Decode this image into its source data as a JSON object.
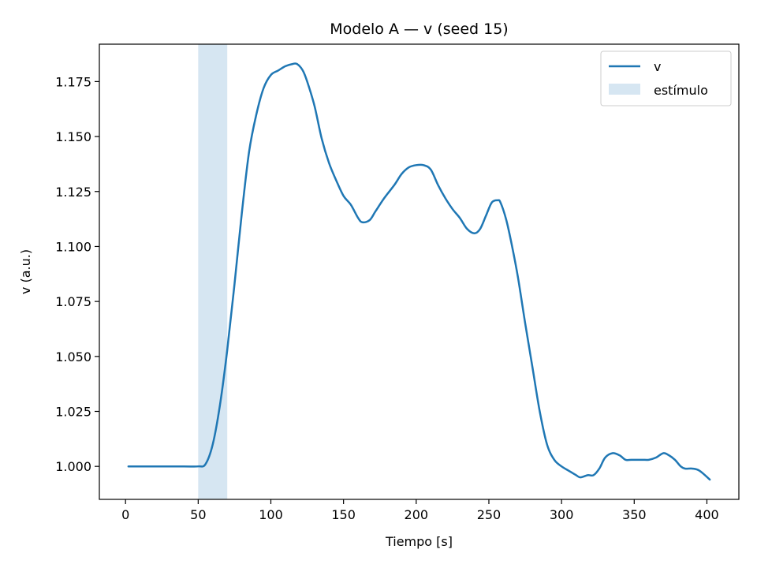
{
  "chart_data": {
    "type": "line",
    "title": "Modelo A — v (seed 15)",
    "xlabel": "Tiempo [s]",
    "ylabel": "v (a.u.)",
    "xlim": [
      -18,
      422
    ],
    "ylim": [
      0.985,
      1.192
    ],
    "xticks": [
      0,
      50,
      100,
      150,
      200,
      250,
      300,
      350,
      400
    ],
    "yticks": [
      1.0,
      1.025,
      1.05,
      1.075,
      1.1,
      1.125,
      1.15,
      1.175
    ],
    "ytick_labels": [
      "1.000",
      "1.025",
      "1.050",
      "1.075",
      "1.100",
      "1.125",
      "1.150",
      "1.175"
    ],
    "grid": false,
    "legend_position": "top-right",
    "colors": {
      "line": "#1f77b4",
      "span": "#d6e6f2"
    },
    "series": [
      {
        "name": "v",
        "x": [
          2,
          20,
          40,
          50,
          55,
          60,
          65,
          70,
          75,
          80,
          85,
          90,
          95,
          100,
          105,
          110,
          115,
          118,
          122,
          125,
          130,
          135,
          140,
          145,
          150,
          155,
          160,
          163,
          168,
          172,
          178,
          185,
          190,
          195,
          200,
          205,
          210,
          215,
          220,
          225,
          230,
          235,
          240,
          244,
          248,
          252,
          256,
          258,
          262,
          266,
          270,
          275,
          280,
          285,
          290,
          295,
          300,
          305,
          310,
          313,
          318,
          322,
          326,
          330,
          335,
          340,
          344,
          348,
          352,
          356,
          360,
          365,
          370,
          374,
          378,
          382,
          385,
          390,
          395,
          402
        ],
        "y": [
          1.0,
          1.0,
          1.0,
          1.0,
          1.001,
          1.01,
          1.028,
          1.053,
          1.083,
          1.115,
          1.143,
          1.16,
          1.172,
          1.178,
          1.18,
          1.182,
          1.183,
          1.183,
          1.18,
          1.175,
          1.164,
          1.149,
          1.138,
          1.13,
          1.123,
          1.119,
          1.113,
          1.111,
          1.112,
          1.116,
          1.122,
          1.128,
          1.133,
          1.136,
          1.137,
          1.137,
          1.135,
          1.128,
          1.122,
          1.117,
          1.113,
          1.108,
          1.106,
          1.108,
          1.114,
          1.12,
          1.121,
          1.12,
          1.112,
          1.1,
          1.086,
          1.065,
          1.045,
          1.025,
          1.01,
          1.003,
          1.0,
          0.998,
          0.996,
          0.995,
          0.996,
          0.996,
          0.999,
          1.004,
          1.006,
          1.005,
          1.003,
          1.003,
          1.003,
          1.003,
          1.003,
          1.004,
          1.006,
          1.005,
          1.003,
          1.0,
          0.999,
          0.999,
          0.998,
          0.994
        ]
      }
    ],
    "spans": [
      {
        "name": "estímulo",
        "x0": 50,
        "x1": 70
      }
    ]
  }
}
